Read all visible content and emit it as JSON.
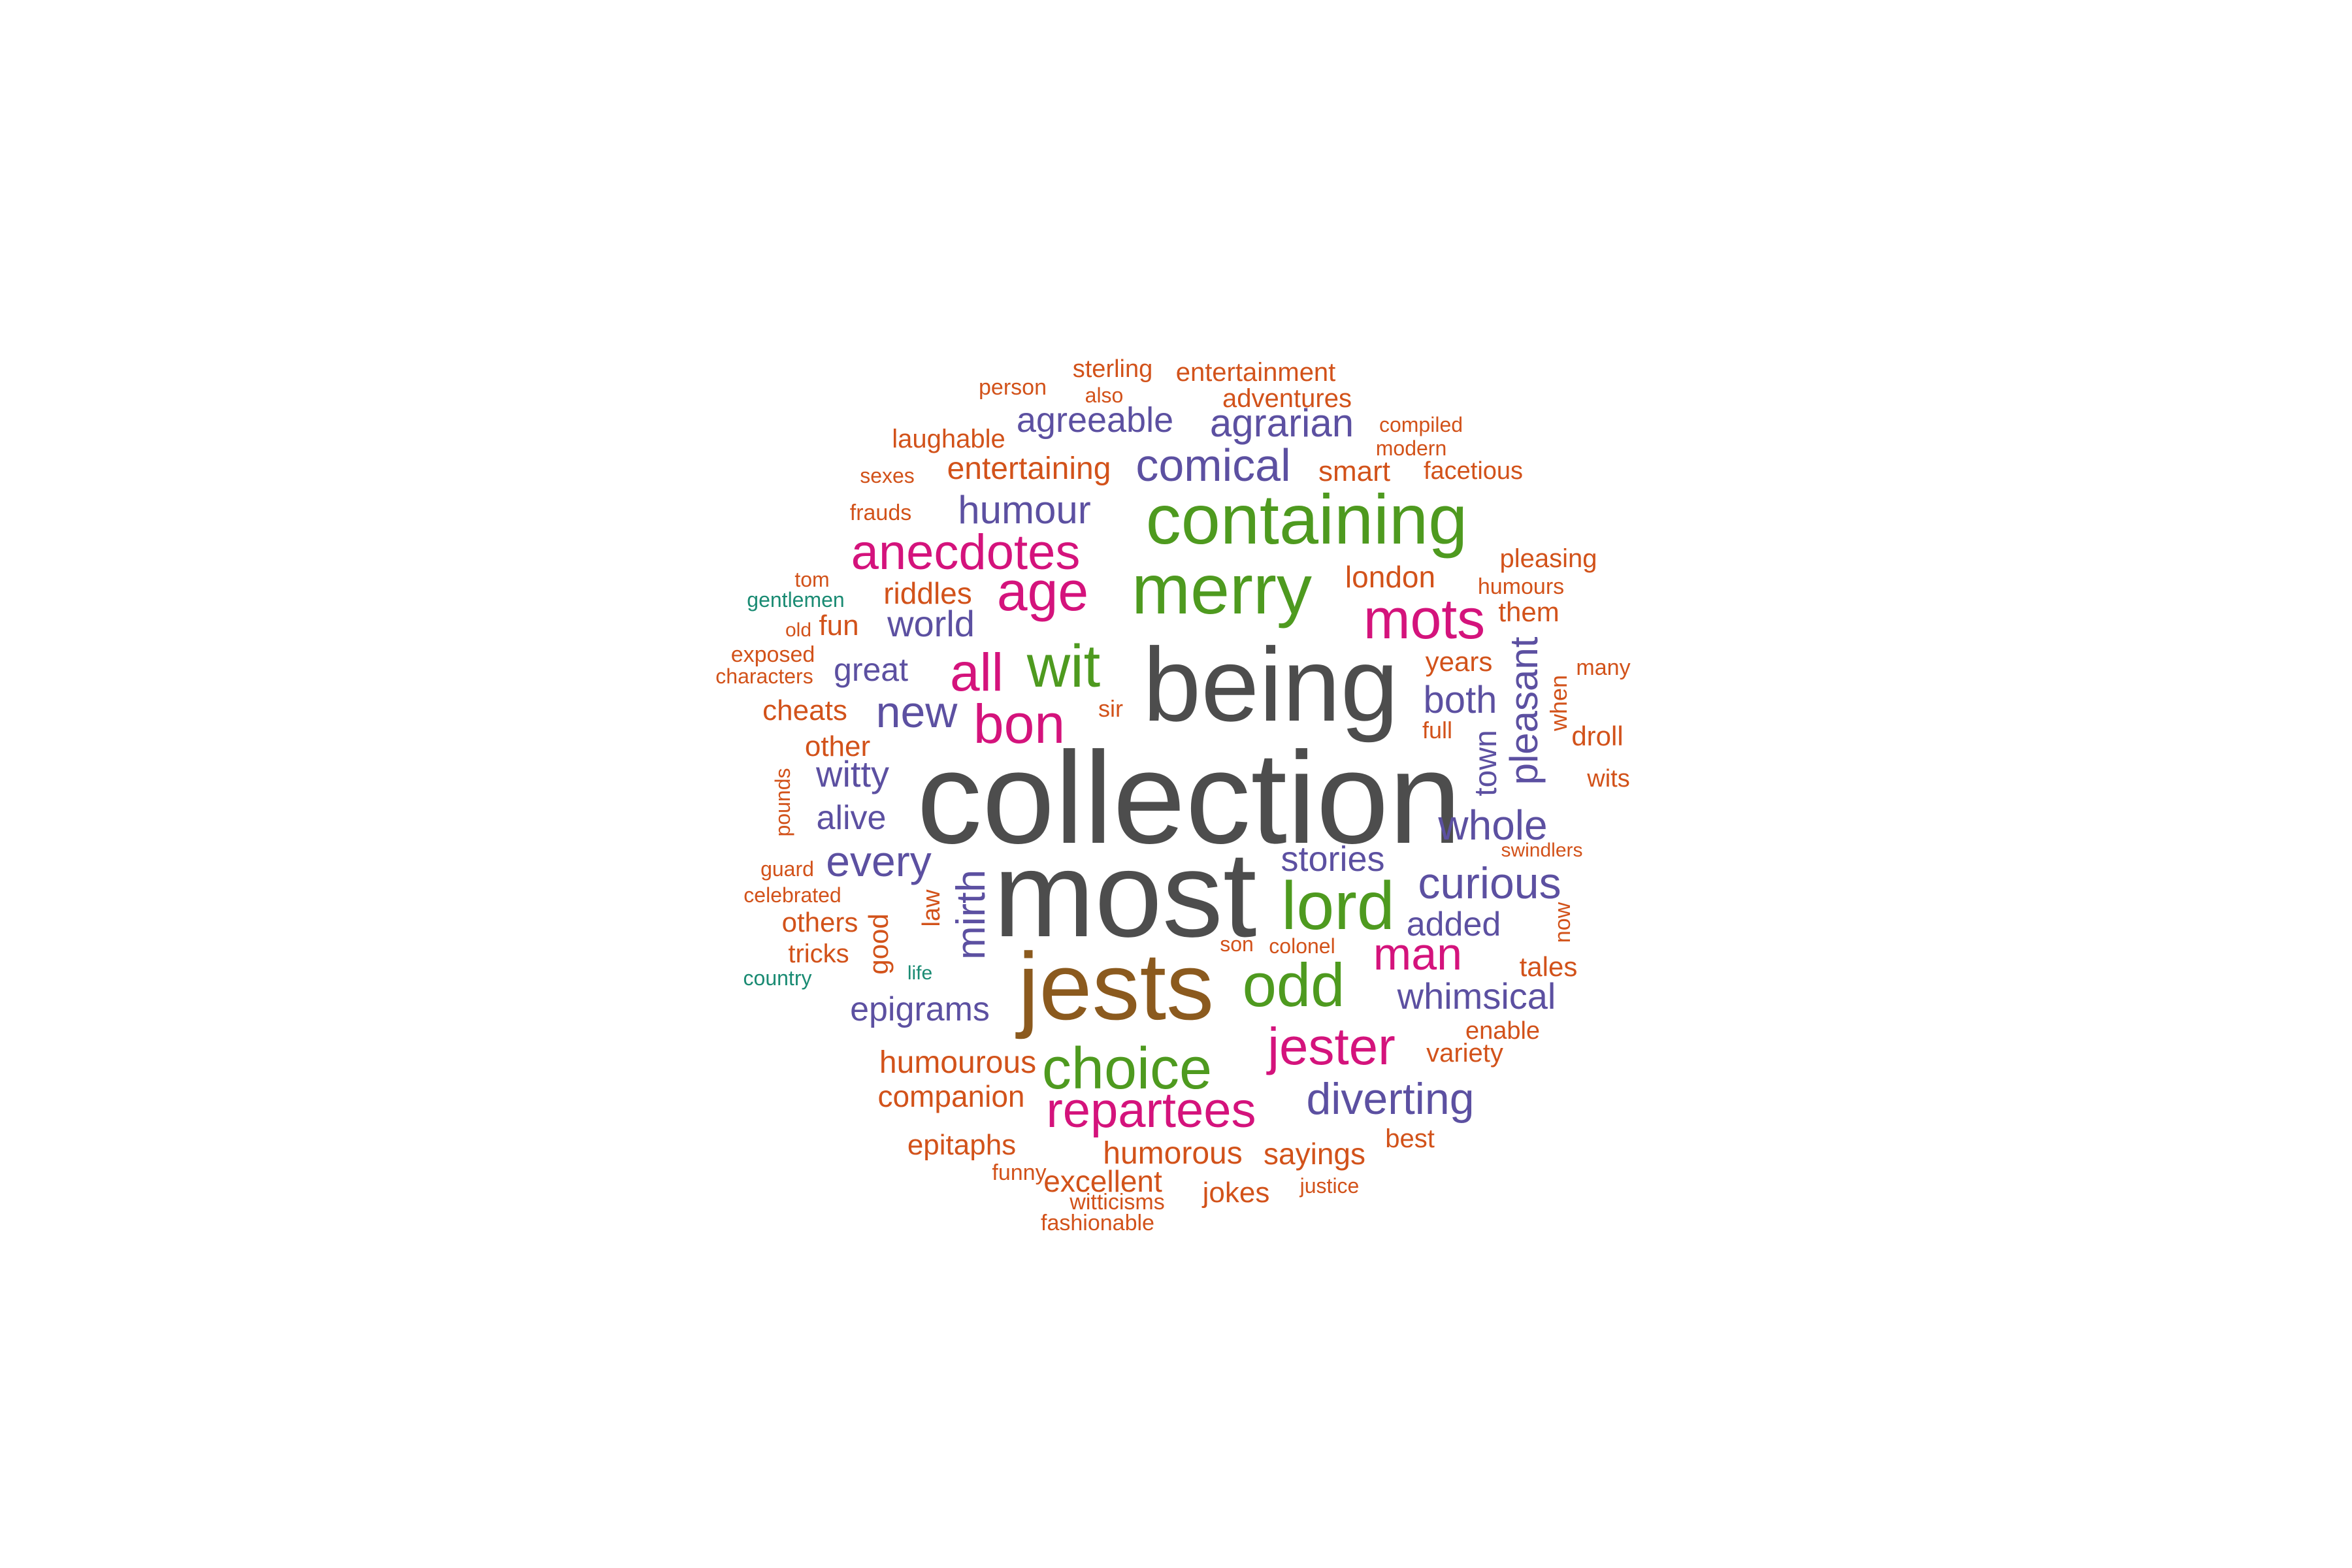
{
  "colors": {
    "gray": "#4d4d4d",
    "olive": "#8b5a1e",
    "green": "#4e9a1f",
    "magenta": "#d4137c",
    "purple": "#5c50a1",
    "orange": "#d2521a",
    "teal": "#1a8b73"
  },
  "words": [
    {
      "text": "collection",
      "color": "gray"
    },
    {
      "text": "most",
      "color": "gray"
    },
    {
      "text": "being",
      "color": "gray"
    },
    {
      "text": "jests",
      "color": "olive"
    },
    {
      "text": "containing",
      "color": "green"
    },
    {
      "text": "merry",
      "color": "green"
    },
    {
      "text": "choice",
      "color": "green"
    },
    {
      "text": "lord",
      "color": "green"
    },
    {
      "text": "odd",
      "color": "green"
    },
    {
      "text": "wit",
      "color": "green"
    },
    {
      "text": "jester",
      "color": "magenta"
    },
    {
      "text": "repartees",
      "color": "magenta"
    },
    {
      "text": "anecdotes",
      "color": "magenta"
    },
    {
      "text": "mots",
      "color": "magenta"
    },
    {
      "text": "age",
      "color": "magenta"
    },
    {
      "text": "bon",
      "color": "magenta"
    },
    {
      "text": "all",
      "color": "magenta"
    },
    {
      "text": "man",
      "color": "magenta"
    },
    {
      "text": "comical",
      "color": "purple"
    },
    {
      "text": "curious",
      "color": "purple"
    },
    {
      "text": "diverting",
      "color": "purple"
    },
    {
      "text": "whole",
      "color": "purple"
    },
    {
      "text": "whimsical",
      "color": "purple"
    },
    {
      "text": "agrarian",
      "color": "purple"
    },
    {
      "text": "agreeable",
      "color": "purple"
    },
    {
      "text": "humour",
      "color": "purple"
    },
    {
      "text": "world",
      "color": "purple"
    },
    {
      "text": "new",
      "color": "purple"
    },
    {
      "text": "every",
      "color": "purple"
    },
    {
      "text": "witty",
      "color": "purple"
    },
    {
      "text": "alive",
      "color": "purple"
    },
    {
      "text": "great",
      "color": "purple"
    },
    {
      "text": "both",
      "color": "purple"
    },
    {
      "text": "stories",
      "color": "purple"
    },
    {
      "text": "added",
      "color": "purple"
    },
    {
      "text": "epigrams",
      "color": "purple"
    },
    {
      "text": "mirth",
      "color": "purple"
    },
    {
      "text": "pleasant",
      "color": "purple"
    },
    {
      "text": "town",
      "color": "purple"
    },
    {
      "text": "entertaining",
      "color": "orange"
    },
    {
      "text": "humourous",
      "color": "orange"
    },
    {
      "text": "companion",
      "color": "orange"
    },
    {
      "text": "humorous",
      "color": "orange"
    },
    {
      "text": "sayings",
      "color": "orange"
    },
    {
      "text": "excellent",
      "color": "orange"
    },
    {
      "text": "jokes",
      "color": "orange"
    },
    {
      "text": "epitaphs",
      "color": "orange"
    },
    {
      "text": "entertainment",
      "color": "orange"
    },
    {
      "text": "adventures",
      "color": "orange"
    },
    {
      "text": "sterling",
      "color": "orange"
    },
    {
      "text": "laughable",
      "color": "orange"
    },
    {
      "text": "smart",
      "color": "orange"
    },
    {
      "text": "facetious",
      "color": "orange"
    },
    {
      "text": "pleasing",
      "color": "orange"
    },
    {
      "text": "london",
      "color": "orange"
    },
    {
      "text": "riddles",
      "color": "orange"
    },
    {
      "text": "humours",
      "color": "orange"
    },
    {
      "text": "them",
      "color": "orange"
    },
    {
      "text": "years",
      "color": "orange"
    },
    {
      "text": "cheats",
      "color": "orange"
    },
    {
      "text": "fun",
      "color": "orange"
    },
    {
      "text": "other",
      "color": "orange"
    },
    {
      "text": "droll",
      "color": "orange"
    },
    {
      "text": "wits",
      "color": "orange"
    },
    {
      "text": "tales",
      "color": "orange"
    },
    {
      "text": "variety",
      "color": "orange"
    },
    {
      "text": "enable",
      "color": "orange"
    },
    {
      "text": "best",
      "color": "orange"
    },
    {
      "text": "others",
      "color": "orange"
    },
    {
      "text": "tricks",
      "color": "orange"
    },
    {
      "text": "full",
      "color": "orange"
    },
    {
      "text": "sir",
      "color": "orange"
    },
    {
      "text": "many",
      "color": "orange"
    },
    {
      "text": "person",
      "color": "orange"
    },
    {
      "text": "also",
      "color": "orange"
    },
    {
      "text": "compiled",
      "color": "orange"
    },
    {
      "text": "modern",
      "color": "orange"
    },
    {
      "text": "sexes",
      "color": "orange"
    },
    {
      "text": "frauds",
      "color": "orange"
    },
    {
      "text": "tom",
      "color": "orange"
    },
    {
      "text": "old",
      "color": "orange"
    },
    {
      "text": "exposed",
      "color": "orange"
    },
    {
      "text": "characters",
      "color": "orange"
    },
    {
      "text": "guard",
      "color": "orange"
    },
    {
      "text": "celebrated",
      "color": "orange"
    },
    {
      "text": "swindlers",
      "color": "orange"
    },
    {
      "text": "son",
      "color": "orange"
    },
    {
      "text": "colonel",
      "color": "orange"
    },
    {
      "text": "funny",
      "color": "orange"
    },
    {
      "text": "witticisms",
      "color": "orange"
    },
    {
      "text": "fashionable",
      "color": "orange"
    },
    {
      "text": "justice",
      "color": "orange"
    },
    {
      "text": "good",
      "color": "orange"
    },
    {
      "text": "law",
      "color": "orange"
    },
    {
      "text": "pounds",
      "color": "orange"
    },
    {
      "text": "when",
      "color": "orange"
    },
    {
      "text": "now",
      "color": "orange"
    },
    {
      "text": "gentlemen",
      "color": "teal"
    },
    {
      "text": "country",
      "color": "teal"
    },
    {
      "text": "life",
      "color": "teal"
    }
  ]
}
